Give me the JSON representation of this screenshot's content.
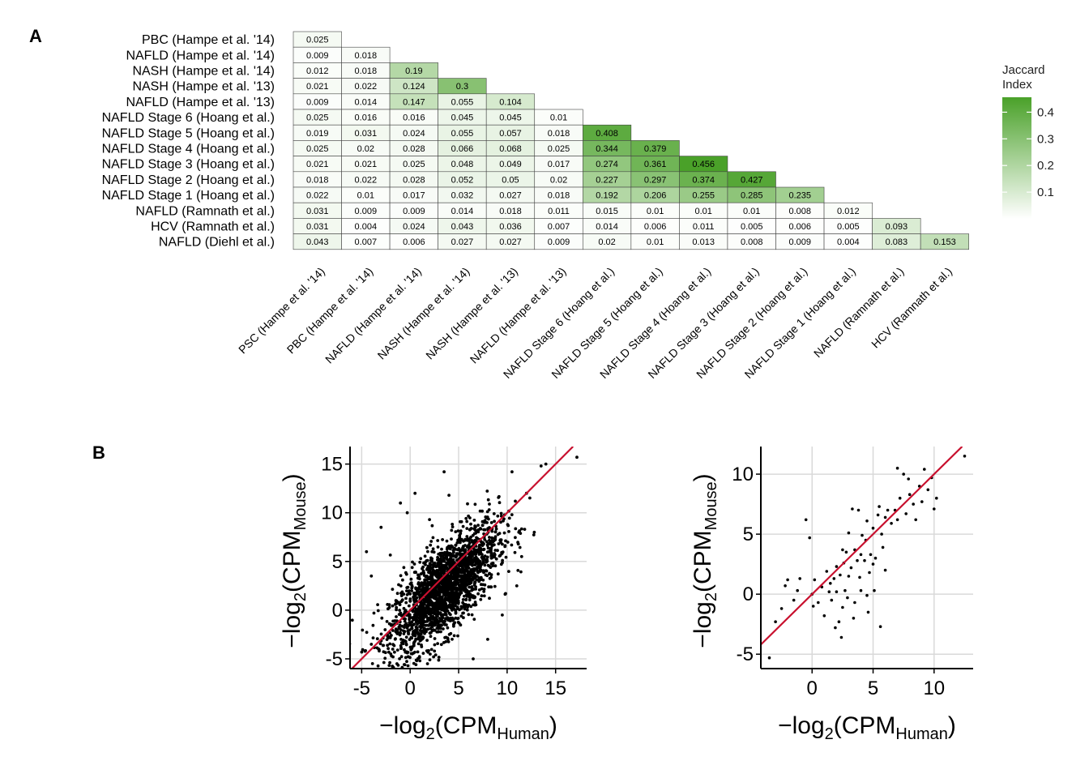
{
  "panel_a_label": "A",
  "panel_b_label": "B",
  "colors": {
    "low": "#ffffff",
    "high": "#4aa129",
    "grid": "#d9d9d9",
    "identity_line": "#c8102e",
    "points": "#000000"
  },
  "chart_data": [
    {
      "type": "heatmap",
      "row_labels": [
        "PBC (Hampe et al. '14)",
        "NAFLD (Hampe et al. '14)",
        "NASH (Hampe et al. '14)",
        "NASH (Hampe et al. '13)",
        "NAFLD (Hampe et al. '13)",
        "NAFLD Stage 6 (Hoang et al.)",
        "NAFLD Stage 5 (Hoang et al.)",
        "NAFLD Stage 4 (Hoang et al.)",
        "NAFLD Stage 3 (Hoang et al.)",
        "NAFLD Stage 2 (Hoang et al.)",
        "NAFLD Stage 1 (Hoang et al.)",
        "NAFLD (Ramnath et al.)",
        "HCV (Ramnath et al.)",
        "NAFLD (Diehl et al.)"
      ],
      "col_labels": [
        "PSC (Hampe et al. '14)",
        "PBC (Hampe et al. '14)",
        "NAFLD (Hampe et al. '14)",
        "NASH (Hampe et al. '14)",
        "NASH (Hampe et al. '13)",
        "NAFLD (Hampe et al. '13)",
        "NAFLD Stage 6 (Hoang et al.)",
        "NAFLD Stage 5 (Hoang et al.)",
        "NAFLD Stage 4 (Hoang et al.)",
        "NAFLD Stage 3 (Hoang et al.)",
        "NAFLD Stage 2 (Hoang et al.)",
        "NAFLD Stage 1 (Hoang et al.)",
        "NAFLD (Ramnath et al.)",
        "HCV (Ramnath et al.)"
      ],
      "values": [
        [
          "0.025"
        ],
        [
          "0.009",
          "0.018"
        ],
        [
          "0.012",
          "0.018",
          "0.19"
        ],
        [
          "0.021",
          "0.022",
          "0.124",
          "0.3"
        ],
        [
          "0.009",
          "0.014",
          "0.147",
          "0.055",
          "0.104"
        ],
        [
          "0.025",
          "0.016",
          "0.016",
          "0.045",
          "0.045",
          "0.01"
        ],
        [
          "0.019",
          "0.031",
          "0.024",
          "0.055",
          "0.057",
          "0.018",
          "0.408"
        ],
        [
          "0.025",
          "0.02",
          "0.028",
          "0.066",
          "0.068",
          "0.025",
          "0.344",
          "0.379"
        ],
        [
          "0.021",
          "0.021",
          "0.025",
          "0.048",
          "0.049",
          "0.017",
          "0.274",
          "0.361",
          "0.456"
        ],
        [
          "0.018",
          "0.022",
          "0.028",
          "0.052",
          "0.05",
          "0.02",
          "0.227",
          "0.297",
          "0.374",
          "0.427"
        ],
        [
          "0.022",
          "0.01",
          "0.017",
          "0.032",
          "0.027",
          "0.018",
          "0.192",
          "0.206",
          "0.255",
          "0.285",
          "0.235"
        ],
        [
          "0.031",
          "0.009",
          "0.009",
          "0.014",
          "0.018",
          "0.011",
          "0.015",
          "0.01",
          "0.01",
          "0.01",
          "0.008",
          "0.012"
        ],
        [
          "0.031",
          "0.004",
          "0.024",
          "0.043",
          "0.036",
          "0.007",
          "0.014",
          "0.006",
          "0.011",
          "0.005",
          "0.006",
          "0.005",
          "0.093"
        ],
        [
          "0.043",
          "0.007",
          "0.006",
          "0.027",
          "0.027",
          "0.009",
          "0.02",
          "0.01",
          "0.013",
          "0.008",
          "0.009",
          "0.004",
          "0.083",
          "0.153"
        ]
      ],
      "legend": {
        "title_lines": [
          "Jaccard",
          "Index"
        ],
        "ticks": [
          "0.1",
          "0.2",
          "0.3",
          "0.4"
        ],
        "range": [
          0,
          0.456
        ],
        "placement": "right"
      }
    },
    {
      "type": "scatter",
      "xlim": [
        -6.2,
        18.2
      ],
      "ylim": [
        -6,
        16.8
      ],
      "xticks": [
        "-5",
        "0",
        "5",
        "10",
        "15"
      ],
      "yticks": [
        "-5",
        "0",
        "5",
        "10",
        "15"
      ],
      "xlabel": {
        "prefix": "−log",
        "sub": "2",
        "main": "(CPM",
        "main_sub": "Human",
        "close": ")"
      },
      "ylabel": {
        "prefix": "−log",
        "sub": "2",
        "main": "(CPM",
        "main_sub": "Mouse",
        "close": ")"
      },
      "grid": true,
      "identity_line": true,
      "points_extreme": [
        [
          17.2,
          15.7
        ],
        [
          14.0,
          15.0
        ],
        [
          13.5,
          14.8
        ],
        [
          12.0,
          12.0
        ],
        [
          10.5,
          14.2
        ],
        [
          3.5,
          14.2
        ],
        [
          -1.0,
          11.0
        ],
        [
          -0.3,
          10.0
        ],
        [
          4.0,
          11.8
        ],
        [
          -4.5,
          6.0
        ],
        [
          -5.0,
          -4.3
        ],
        [
          -4.0,
          -3.5
        ],
        [
          -2.0,
          -4.5
        ],
        [
          1.0,
          -5.2
        ],
        [
          6.5,
          -5.0
        ],
        [
          8.0,
          -3.0
        ],
        [
          9.5,
          -0.5
        ],
        [
          11.0,
          2.5
        ],
        [
          12.8,
          8.0
        ],
        [
          11.5,
          5.5
        ],
        [
          -3.0,
          8.5
        ],
        [
          2.0,
          9.3
        ],
        [
          -4.0,
          3.5
        ],
        [
          0.5,
          12.0
        ]
      ],
      "cloud": {
        "n_points": 2200,
        "x_mean": 3.5,
        "x_sd": 2.8,
        "slope": 0.85,
        "intercept": -0.8,
        "residual_sd": 2.3
      }
    },
    {
      "type": "scatter",
      "xlim": [
        -4.2,
        13.2
      ],
      "ylim": [
        -6.2,
        12.3
      ],
      "xticks": [
        "0",
        "5",
        "10"
      ],
      "yticks": [
        "-5",
        "0",
        "5",
        "10"
      ],
      "xlabel": {
        "prefix": "−log",
        "sub": "2",
        "main": "(CPM",
        "main_sub": "Human",
        "close": ")"
      },
      "ylabel": {
        "prefix": "−log",
        "sub": "2",
        "main": "(CPM",
        "main_sub": "Mouse",
        "close": ")"
      },
      "grid": true,
      "identity_line": true,
      "points": [
        [
          -3.5,
          -5.3
        ],
        [
          -3.0,
          -2.3
        ],
        [
          -2.2,
          0.7
        ],
        [
          -2.0,
          1.2
        ],
        [
          -1.5,
          -0.5
        ],
        [
          -1.2,
          0.3
        ],
        [
          -1.0,
          1.3
        ],
        [
          -0.5,
          6.2
        ],
        [
          -0.2,
          4.7
        ],
        [
          0.0,
          0.0
        ],
        [
          0.1,
          -1.0
        ],
        [
          0.2,
          1.2
        ],
        [
          0.5,
          -0.7
        ],
        [
          0.8,
          0.6
        ],
        [
          1.0,
          -1.8
        ],
        [
          1.2,
          1.9
        ],
        [
          1.4,
          0.2
        ],
        [
          1.5,
          0.9
        ],
        [
          1.6,
          -0.5
        ],
        [
          1.8,
          1.3
        ],
        [
          2.0,
          0.2
        ],
        [
          2.0,
          2.3
        ],
        [
          2.2,
          -2.3
        ],
        [
          2.3,
          1.6
        ],
        [
          2.5,
          3.7
        ],
        [
          2.5,
          -1.1
        ],
        [
          2.6,
          2.6
        ],
        [
          2.7,
          0.3
        ],
        [
          2.8,
          3.5
        ],
        [
          2.9,
          -0.3
        ],
        [
          3.0,
          1.5
        ],
        [
          3.0,
          5.1
        ],
        [
          3.2,
          2.2
        ],
        [
          3.3,
          7.1
        ],
        [
          3.5,
          3.7
        ],
        [
          3.5,
          -0.7
        ],
        [
          3.7,
          2.8
        ],
        [
          3.8,
          7.0
        ],
        [
          3.9,
          1.4
        ],
        [
          4.0,
          3.3
        ],
        [
          4.0,
          0.3
        ],
        [
          4.1,
          4.9
        ],
        [
          4.3,
          2.8
        ],
        [
          4.4,
          4.5
        ],
        [
          4.5,
          -0.1
        ],
        [
          4.5,
          6.1
        ],
        [
          4.7,
          1.8
        ],
        [
          4.8,
          3.3
        ],
        [
          5.0,
          2.5
        ],
        [
          5.0,
          5.5
        ],
        [
          5.1,
          0.3
        ],
        [
          5.2,
          3.0
        ],
        [
          5.4,
          6.6
        ],
        [
          5.5,
          7.3
        ],
        [
          5.7,
          5.0
        ],
        [
          5.8,
          3.9
        ],
        [
          6.0,
          2.0
        ],
        [
          6.0,
          6.4
        ],
        [
          6.2,
          7.0
        ],
        [
          6.5,
          5.9
        ],
        [
          6.8,
          7.0
        ],
        [
          7.0,
          10.5
        ],
        [
          7.0,
          6.2
        ],
        [
          7.2,
          8.0
        ],
        [
          7.5,
          10.0
        ],
        [
          7.7,
          6.7
        ],
        [
          7.9,
          9.6
        ],
        [
          8.0,
          8.3
        ],
        [
          8.3,
          7.5
        ],
        [
          8.5,
          6.2
        ],
        [
          8.8,
          9.0
        ],
        [
          9.0,
          7.7
        ],
        [
          9.2,
          10.4
        ],
        [
          9.5,
          8.7
        ],
        [
          9.8,
          9.7
        ],
        [
          10.0,
          7.1
        ],
        [
          10.2,
          8.0
        ],
        [
          12.5,
          11.5
        ],
        [
          -2.5,
          -1.2
        ],
        [
          1.9,
          -2.8
        ],
        [
          3.4,
          -2.0
        ],
        [
          5.6,
          -2.7
        ],
        [
          2.4,
          -3.6
        ],
        [
          4.6,
          -1.5
        ]
      ]
    }
  ]
}
